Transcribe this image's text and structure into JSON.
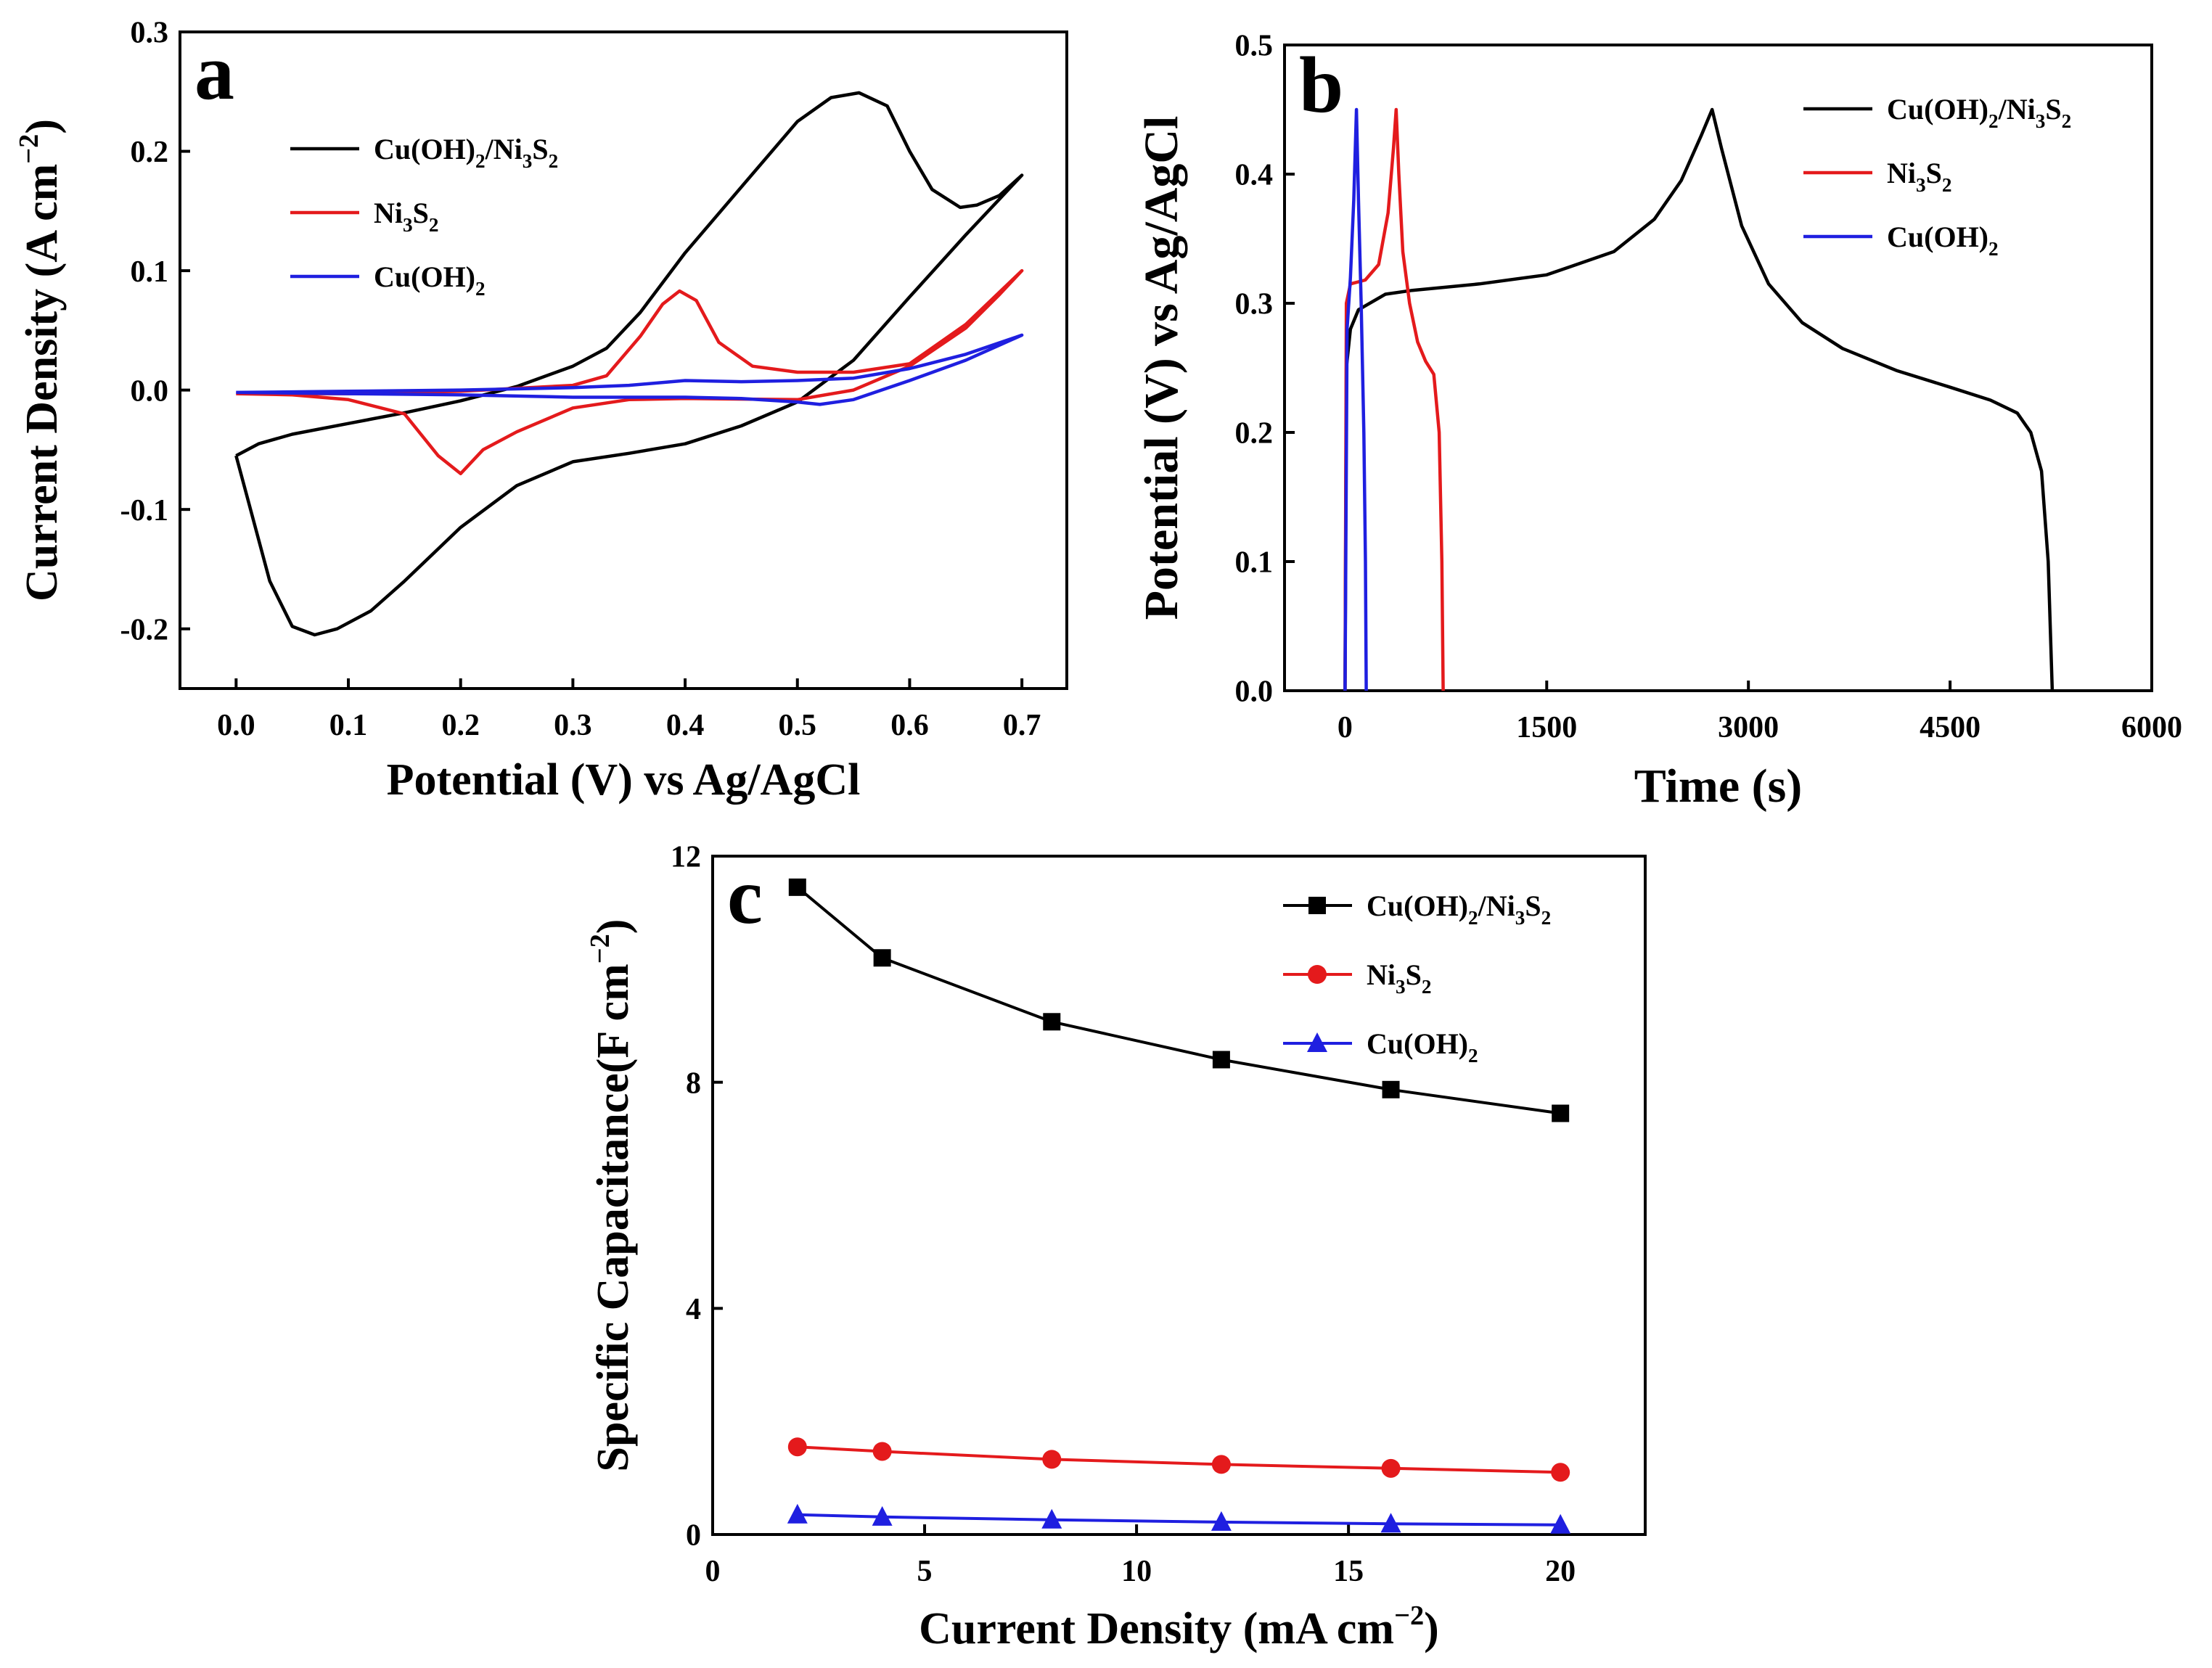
{
  "chart_data": [
    {
      "panel": "a",
      "type": "line",
      "xlabel": "Potential (V) vs Ag/AgCl",
      "ylabel": "Current Density (A cm",
      "ylabel_sup": "−2",
      "ylabel_close": ")",
      "xlim": [
        -0.05,
        0.74
      ],
      "ylim": [
        -0.25,
        0.3
      ],
      "xticks": [
        0.0,
        0.1,
        0.2,
        0.3,
        0.4,
        0.5,
        0.6,
        0.7
      ],
      "yticks": [
        -0.2,
        -0.1,
        0.0,
        0.1,
        0.2,
        0.3
      ],
      "xtick_labels": [
        "0.0",
        "0.1",
        "0.2",
        "0.3",
        "0.4",
        "0.5",
        "0.6",
        "0.7"
      ],
      "ytick_labels": [
        "-0.2",
        "-0.1",
        "0.0",
        "0.1",
        "0.2",
        "0.3"
      ],
      "legend_position": "top-left",
      "series": [
        {
          "name": "Cu(OH)2/Ni3S2",
          "color": "#000000",
          "points": [
            [
              0.0,
              -0.055
            ],
            [
              0.02,
              -0.045
            ],
            [
              0.05,
              -0.037
            ],
            [
              0.1,
              -0.028
            ],
            [
              0.15,
              -0.019
            ],
            [
              0.2,
              -0.009
            ],
            [
              0.25,
              0.003
            ],
            [
              0.3,
              0.02
            ],
            [
              0.33,
              0.035
            ],
            [
              0.36,
              0.065
            ],
            [
              0.4,
              0.115
            ],
            [
              0.45,
              0.17
            ],
            [
              0.5,
              0.225
            ],
            [
              0.53,
              0.245
            ],
            [
              0.555,
              0.249
            ],
            [
              0.58,
              0.238
            ],
            [
              0.6,
              0.2
            ],
            [
              0.62,
              0.168
            ],
            [
              0.645,
              0.153
            ],
            [
              0.66,
              0.155
            ],
            [
              0.68,
              0.163
            ],
            [
              0.7,
              0.18
            ],
            [
              0.68,
              0.16
            ],
            [
              0.65,
              0.13
            ],
            [
              0.6,
              0.078
            ],
            [
              0.55,
              0.025
            ],
            [
              0.5,
              -0.01
            ],
            [
              0.45,
              -0.03
            ],
            [
              0.4,
              -0.045
            ],
            [
              0.35,
              -0.053
            ],
            [
              0.3,
              -0.06
            ],
            [
              0.25,
              -0.08
            ],
            [
              0.2,
              -0.115
            ],
            [
              0.15,
              -0.16
            ],
            [
              0.12,
              -0.185
            ],
            [
              0.09,
              -0.2
            ],
            [
              0.07,
              -0.205
            ],
            [
              0.05,
              -0.198
            ],
            [
              0.03,
              -0.16
            ],
            [
              0.01,
              -0.09
            ],
            [
              0.0,
              -0.055
            ]
          ]
        },
        {
          "name": "Ni3S2",
          "color": "#e41a1c",
          "points": [
            [
              0.0,
              -0.003
            ],
            [
              0.1,
              -0.003
            ],
            [
              0.2,
              -0.001
            ],
            [
              0.3,
              0.004
            ],
            [
              0.33,
              0.012
            ],
            [
              0.36,
              0.045
            ],
            [
              0.38,
              0.072
            ],
            [
              0.395,
              0.083
            ],
            [
              0.41,
              0.075
            ],
            [
              0.43,
              0.04
            ],
            [
              0.46,
              0.02
            ],
            [
              0.5,
              0.015
            ],
            [
              0.55,
              0.015
            ],
            [
              0.6,
              0.022
            ],
            [
              0.65,
              0.055
            ],
            [
              0.7,
              0.1
            ],
            [
              0.68,
              0.08
            ],
            [
              0.65,
              0.052
            ],
            [
              0.6,
              0.02
            ],
            [
              0.55,
              0.0
            ],
            [
              0.5,
              -0.008
            ],
            [
              0.4,
              -0.007
            ],
            [
              0.35,
              -0.008
            ],
            [
              0.3,
              -0.015
            ],
            [
              0.25,
              -0.035
            ],
            [
              0.22,
              -0.05
            ],
            [
              0.2,
              -0.07
            ],
            [
              0.18,
              -0.055
            ],
            [
              0.15,
              -0.02
            ],
            [
              0.1,
              -0.008
            ],
            [
              0.05,
              -0.004
            ],
            [
              0.0,
              -0.003
            ]
          ]
        },
        {
          "name": "Cu(OH)2",
          "color": "#1f1fe0",
          "points": [
            [
              0.0,
              -0.002
            ],
            [
              0.1,
              -0.001
            ],
            [
              0.2,
              0.0
            ],
            [
              0.3,
              0.002
            ],
            [
              0.35,
              0.004
            ],
            [
              0.4,
              0.008
            ],
            [
              0.45,
              0.007
            ],
            [
              0.5,
              0.008
            ],
            [
              0.55,
              0.01
            ],
            [
              0.6,
              0.018
            ],
            [
              0.65,
              0.03
            ],
            [
              0.7,
              0.046
            ],
            [
              0.65,
              0.025
            ],
            [
              0.6,
              0.008
            ],
            [
              0.55,
              -0.008
            ],
            [
              0.52,
              -0.012
            ],
            [
              0.5,
              -0.01
            ],
            [
              0.45,
              -0.007
            ],
            [
              0.4,
              -0.006
            ],
            [
              0.3,
              -0.006
            ],
            [
              0.2,
              -0.004
            ],
            [
              0.1,
              -0.003
            ],
            [
              0.0,
              -0.002
            ]
          ]
        }
      ]
    },
    {
      "panel": "b",
      "type": "line",
      "xlabel": "Time (s)",
      "ylabel": "Potential (V) vs Ag/AgCl",
      "xlim": [
        -450,
        6000
      ],
      "ylim": [
        0.0,
        0.5
      ],
      "xticks": [
        0,
        1500,
        3000,
        4500,
        6000
      ],
      "yticks": [
        0.0,
        0.1,
        0.2,
        0.3,
        0.4,
        0.5
      ],
      "xtick_labels": [
        "0",
        "1500",
        "3000",
        "4500",
        "6000"
      ],
      "ytick_labels": [
        "0.0",
        "0.1",
        "0.2",
        "0.3",
        "0.4",
        "0.5"
      ],
      "legend_position": "top-right",
      "series": [
        {
          "name": "Cu(OH)2/Ni3S2",
          "color": "#000000",
          "points": [
            [
              0,
              0.0
            ],
            [
              10,
              0.25
            ],
            [
              40,
              0.28
            ],
            [
              100,
              0.295
            ],
            [
              300,
              0.307
            ],
            [
              500,
              0.31
            ],
            [
              1000,
              0.315
            ],
            [
              1500,
              0.322
            ],
            [
              2000,
              0.34
            ],
            [
              2300,
              0.365
            ],
            [
              2500,
              0.395
            ],
            [
              2650,
              0.43
            ],
            [
              2730,
              0.45
            ],
            [
              2800,
              0.42
            ],
            [
              2950,
              0.36
            ],
            [
              3150,
              0.315
            ],
            [
              3400,
              0.285
            ],
            [
              3700,
              0.265
            ],
            [
              4100,
              0.248
            ],
            [
              4500,
              0.235
            ],
            [
              4800,
              0.225
            ],
            [
              5000,
              0.215
            ],
            [
              5100,
              0.2
            ],
            [
              5180,
              0.17
            ],
            [
              5230,
              0.1
            ],
            [
              5260,
              0.0
            ]
          ]
        },
        {
          "name": "Ni3S2",
          "color": "#e41a1c",
          "points": [
            [
              0,
              0.0
            ],
            [
              10,
              0.3
            ],
            [
              40,
              0.315
            ],
            [
              150,
              0.318
            ],
            [
              250,
              0.33
            ],
            [
              320,
              0.37
            ],
            [
              360,
              0.42
            ],
            [
              380,
              0.45
            ],
            [
              400,
              0.4
            ],
            [
              430,
              0.34
            ],
            [
              480,
              0.3
            ],
            [
              540,
              0.27
            ],
            [
              600,
              0.255
            ],
            [
              660,
              0.245
            ],
            [
              700,
              0.2
            ],
            [
              720,
              0.1
            ],
            [
              730,
              0.0
            ]
          ]
        },
        {
          "name": "Cu(OH)2",
          "color": "#1f1fe0",
          "points": [
            [
              0,
              0.0
            ],
            [
              15,
              0.28
            ],
            [
              40,
              0.32
            ],
            [
              65,
              0.38
            ],
            [
              85,
              0.45
            ],
            [
              100,
              0.38
            ],
            [
              120,
              0.3
            ],
            [
              140,
              0.2
            ],
            [
              152,
              0.1
            ],
            [
              158,
              0.0
            ]
          ]
        }
      ]
    },
    {
      "panel": "c",
      "type": "line",
      "xlabel": "Current Density (mA cm",
      "xlabel_sup": "−2",
      "xlabel_close": ")",
      "ylabel": "Specific Capacitance(F cm",
      "ylabel_sup": "−2",
      "ylabel_close": ")",
      "xlim": [
        0,
        22
      ],
      "ylim": [
        0,
        12
      ],
      "xticks": [
        0,
        5,
        10,
        15,
        20
      ],
      "yticks": [
        0,
        4,
        8,
        12
      ],
      "xtick_labels": [
        "0",
        "5",
        "10",
        "15",
        "20"
      ],
      "ytick_labels": [
        "0",
        "4",
        "8",
        "12"
      ],
      "legend_position": "top-right",
      "x": [
        2,
        4,
        8,
        12,
        16,
        20
      ],
      "series": [
        {
          "name": "Cu(OH)2/Ni3S2",
          "color": "#000000",
          "marker": "square",
          "values": [
            11.45,
            10.2,
            9.07,
            8.4,
            7.87,
            7.45
          ]
        },
        {
          "name": "Ni3S2",
          "color": "#e41a1c",
          "marker": "circle",
          "values": [
            1.55,
            1.47,
            1.33,
            1.24,
            1.17,
            1.1
          ]
        },
        {
          "name": "Cu(OH)2",
          "color": "#1f1fe0",
          "marker": "triangle",
          "values": [
            0.35,
            0.31,
            0.26,
            0.22,
            0.19,
            0.17
          ]
        }
      ]
    }
  ]
}
